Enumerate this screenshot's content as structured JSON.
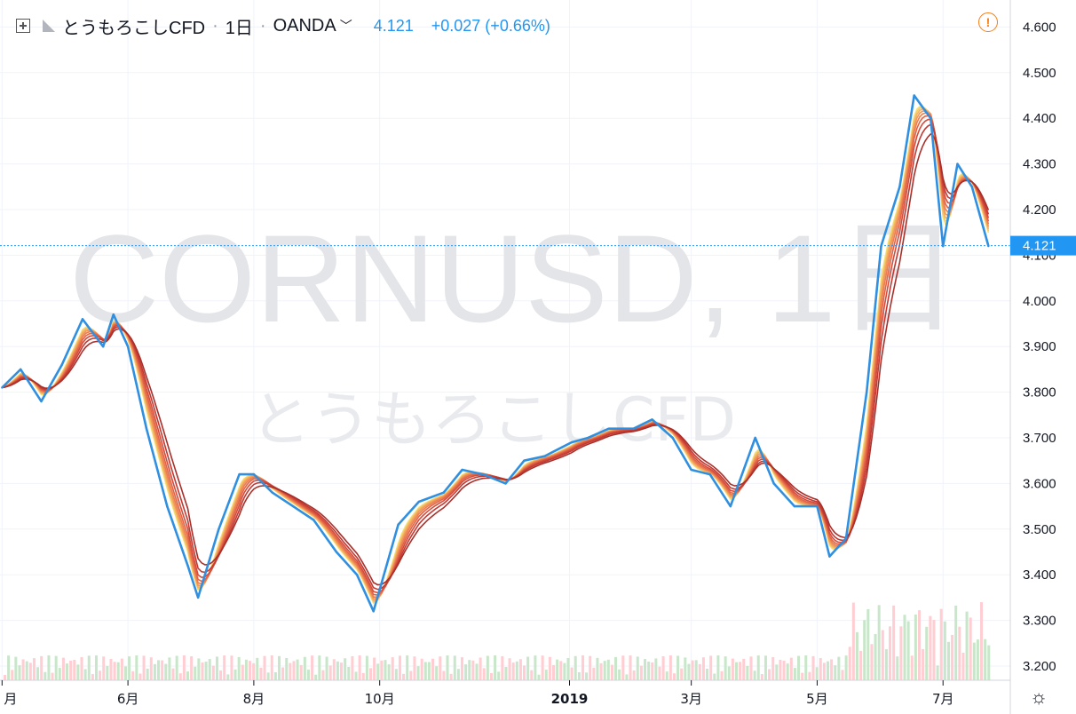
{
  "header": {
    "symbol_name": "とうもろこしCFD",
    "interval": "1日",
    "exchange": "OANDA",
    "last_price": "4.121",
    "change": "+0.027 (+0.66%)"
  },
  "watermark": {
    "line1": "CORNUSD, 1日",
    "line2": "とうもろこしCFD"
  },
  "price_axis": {
    "ticks": [
      "4.600",
      "4.500",
      "4.400",
      "4.300",
      "4.200",
      "4.100",
      "4.000",
      "3.900",
      "3.800",
      "3.700",
      "3.600",
      "3.500",
      "3.400",
      "3.300",
      "3.200"
    ],
    "current_label": "4.121"
  },
  "time_axis": {
    "ticks": [
      "月",
      "6月",
      "8月",
      "10月",
      "2019",
      "3月",
      "5月",
      "7月"
    ]
  },
  "colors": {
    "price_line": "#2f8fe0",
    "current_price_label_bg": "#2196f3",
    "ribbon": [
      "#f3e57a",
      "#f6cb6c",
      "#f5b063",
      "#f2975a",
      "#ec7d50",
      "#e26446",
      "#d44c3c",
      "#c23a33",
      "#a8302b"
    ],
    "volume_up": "#c8e6c9",
    "volume_down": "#ffcdd2",
    "grid": "#f0f3fa",
    "alert_icon": "#f57f17"
  },
  "icons": [
    "plus-box-icon",
    "flag-icon",
    "chevron-down-icon",
    "alert-circle-icon",
    "gear-icon"
  ],
  "chart_data": {
    "type": "line",
    "ylim": [
      3.2,
      4.6
    ],
    "x_tick_labels": [
      "月",
      "6月",
      "8月",
      "10月",
      "2019",
      "3月",
      "5月",
      "7月"
    ],
    "series": [
      {
        "name": "CORNUSD",
        "x": [
          "2018-04-01",
          "2018-04-10",
          "2018-04-20",
          "2018-04-30",
          "2018-05-10",
          "2018-05-20",
          "2018-05-25",
          "2018-06-01",
          "2018-06-10",
          "2018-06-20",
          "2018-06-30",
          "2018-07-05",
          "2018-07-15",
          "2018-07-25",
          "2018-08-01",
          "2018-08-10",
          "2018-08-20",
          "2018-08-30",
          "2018-09-10",
          "2018-09-20",
          "2018-09-28",
          "2018-10-10",
          "2018-10-20",
          "2018-11-01",
          "2018-11-10",
          "2018-11-20",
          "2018-12-01",
          "2018-12-10",
          "2018-12-20",
          "2019-01-02",
          "2019-01-10",
          "2019-01-20",
          "2019-02-01",
          "2019-02-10",
          "2019-02-20",
          "2019-03-01",
          "2019-03-10",
          "2019-03-20",
          "2019-04-01",
          "2019-04-10",
          "2019-04-20",
          "2019-05-01",
          "2019-05-07",
          "2019-05-15",
          "2019-05-25",
          "2019-06-01",
          "2019-06-10",
          "2019-06-17",
          "2019-06-25",
          "2019-07-01",
          "2019-07-08",
          "2019-07-15",
          "2019-07-23"
        ],
        "y": [
          3.81,
          3.85,
          3.78,
          3.86,
          3.96,
          3.9,
          3.97,
          3.9,
          3.72,
          3.55,
          3.42,
          3.35,
          3.5,
          3.62,
          3.62,
          3.58,
          3.55,
          3.52,
          3.45,
          3.4,
          3.32,
          3.51,
          3.56,
          3.58,
          3.63,
          3.62,
          3.6,
          3.65,
          3.66,
          3.69,
          3.7,
          3.72,
          3.72,
          3.74,
          3.7,
          3.63,
          3.62,
          3.55,
          3.7,
          3.6,
          3.55,
          3.55,
          3.44,
          3.48,
          3.8,
          4.12,
          4.25,
          4.45,
          4.4,
          4.12,
          4.3,
          4.25,
          4.12
        ]
      }
    ]
  }
}
